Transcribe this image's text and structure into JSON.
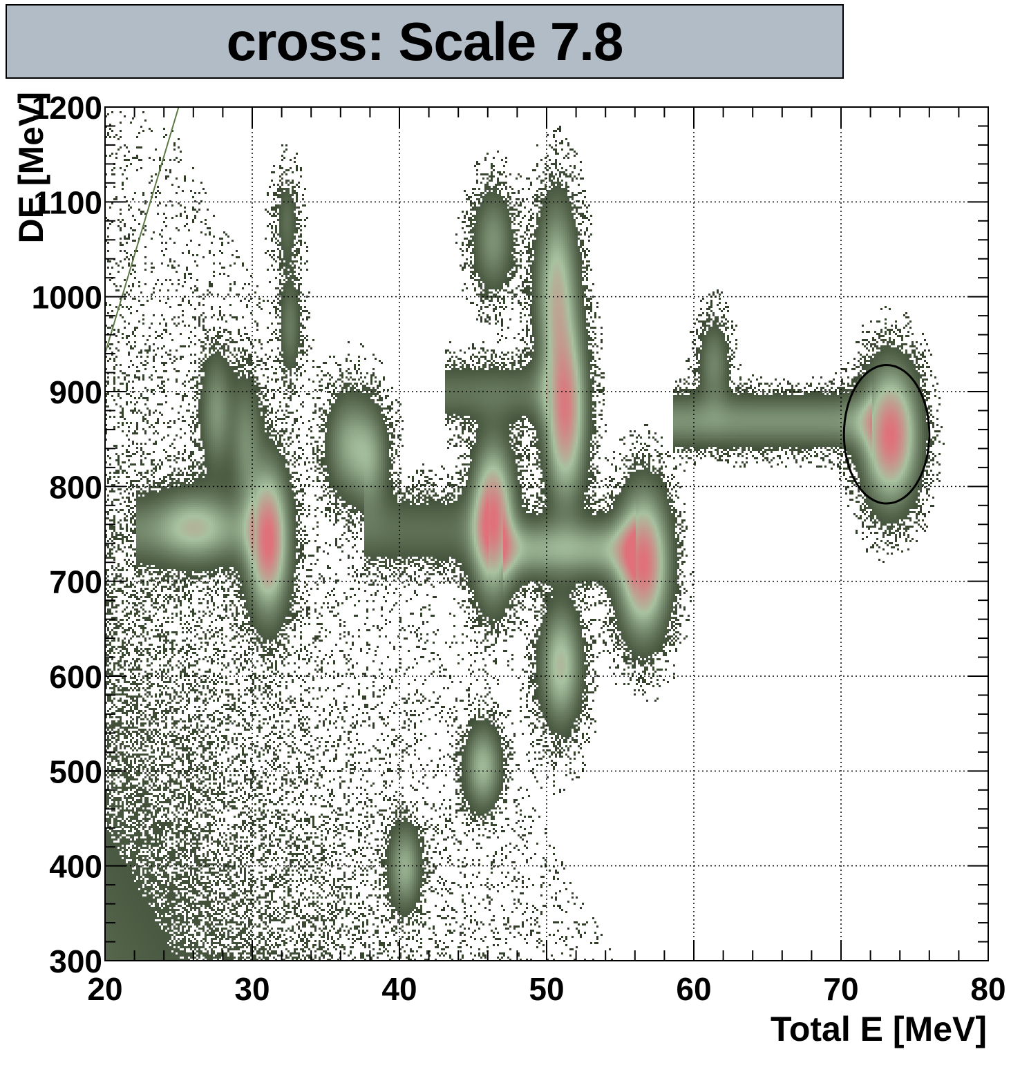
{
  "chart_data": {
    "type": "heatmap",
    "title": "cross: Scale 7.8",
    "xlabel": "Total E [MeV]",
    "ylabel": "DE [MeV]",
    "xlim": [
      20,
      80
    ],
    "ylim": [
      300,
      1200
    ],
    "x_ticks": [
      20,
      30,
      40,
      50,
      60,
      70,
      80
    ],
    "y_ticks": [
      300,
      400,
      500,
      600,
      700,
      800,
      900,
      1000,
      1100,
      1200
    ],
    "grid": true,
    "palette": {
      "low": "#2f3b26",
      "mid": "#a8c2a0",
      "high": "#e0707a"
    },
    "clusters": [
      {
        "x": 31.0,
        "y": 745,
        "sx": 0.9,
        "sy": 48,
        "peak": 1.0
      },
      {
        "x": 46.3,
        "y": 765,
        "sx": 0.9,
        "sy": 50,
        "peak": 1.0
      },
      {
        "x": 56.5,
        "y": 720,
        "sx": 1.1,
        "sy": 48,
        "peak": 1.0
      },
      {
        "x": 51.2,
        "y": 880,
        "sx": 0.9,
        "sy": 60,
        "peak": 0.9
      },
      {
        "x": 50.6,
        "y": 1010,
        "sx": 0.9,
        "sy": 60,
        "peak": 0.6
      },
      {
        "x": 73.3,
        "y": 855,
        "sx": 1.2,
        "sy": 45,
        "peak": 1.0
      },
      {
        "x": 50.9,
        "y": 612,
        "sx": 0.9,
        "sy": 40,
        "peak": 0.6
      },
      {
        "x": 45.6,
        "y": 505,
        "sx": 0.8,
        "sy": 28,
        "peak": 0.5
      },
      {
        "x": 40.3,
        "y": 400,
        "sx": 0.7,
        "sy": 28,
        "peak": 0.45
      },
      {
        "x": 36.5,
        "y": 845,
        "sx": 1.0,
        "sy": 35,
        "peak": 0.4
      },
      {
        "x": 38.0,
        "y": 830,
        "sx": 0.8,
        "sy": 35,
        "peak": 0.35
      },
      {
        "x": 27.5,
        "y": 880,
        "sx": 0.7,
        "sy": 40,
        "peak": 0.35
      },
      {
        "x": 29.5,
        "y": 850,
        "sx": 0.7,
        "sy": 45,
        "peak": 0.3
      },
      {
        "x": 26.0,
        "y": 760,
        "sx": 1.6,
        "sy": 25,
        "peak": 0.35
      },
      {
        "x": 46.3,
        "y": 1060,
        "sx": 0.9,
        "sy": 35,
        "peak": 0.35
      },
      {
        "x": 61.3,
        "y": 930,
        "sx": 0.7,
        "sy": 30,
        "peak": 0.3
      },
      {
        "x": 32.5,
        "y": 970,
        "sx": 0.5,
        "sy": 35,
        "peak": 0.25
      },
      {
        "x": 32.3,
        "y": 1080,
        "sx": 0.5,
        "sy": 30,
        "peak": 0.2
      }
    ],
    "bands": [
      {
        "x1": 58.5,
        "x2": 72.0,
        "y": 870,
        "sy": 18,
        "peak": 0.35
      },
      {
        "x1": 47.0,
        "x2": 56.0,
        "y": 735,
        "sy": 20,
        "peak": 0.45
      },
      {
        "x1": 22.0,
        "x2": 30.0,
        "y": 755,
        "sy": 22,
        "peak": 0.25
      },
      {
        "x1": 37.5,
        "x2": 46.0,
        "y": 755,
        "sy": 25,
        "peak": 0.2
      },
      {
        "x1": 43.0,
        "x2": 50.0,
        "y": 900,
        "sy": 20,
        "peak": 0.22
      }
    ],
    "annotations": [
      {
        "type": "ellipse",
        "cx": 73.1,
        "cy": 855,
        "rx": 2.9,
        "ry": 73
      },
      {
        "type": "line",
        "x1": 20.0,
        "y1": 940,
        "x2": 25.0,
        "y2": 1200
      }
    ]
  }
}
